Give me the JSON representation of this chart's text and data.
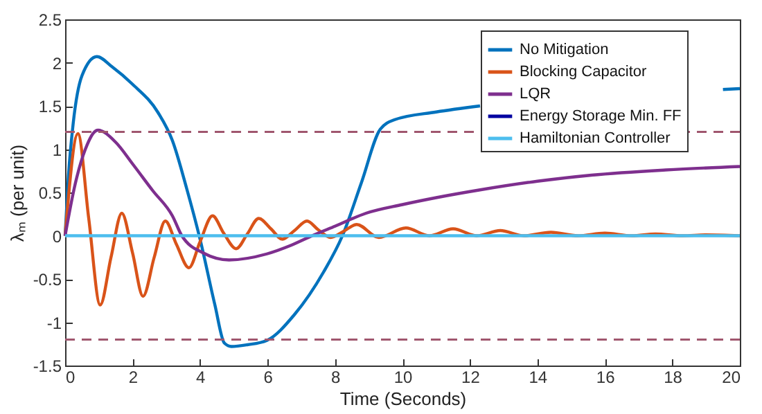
{
  "chart_data": {
    "type": "line",
    "xlabel": "Time (Seconds)",
    "ylabel": "λₘ (per unit)",
    "xlim": [
      0,
      20
    ],
    "xticks": [
      0,
      2,
      4,
      6,
      8,
      10,
      12,
      14,
      16,
      18,
      20
    ],
    "ylim": [
      -1.5,
      2.5
    ],
    "yticks": [
      -1.5,
      -1,
      -0.5,
      0,
      0.5,
      1,
      1.5,
      2,
      2.5
    ],
    "grid": false,
    "legend": "top right",
    "marker": "none",
    "line_style": "solid",
    "series": [
      {
        "name": "No Mitigation",
        "color": "#0072bd",
        "x": [
          0,
          0.1,
          0.24,
          0.5,
          0.94,
          1.4,
          2,
          2.76,
          3.18,
          3.6,
          4.0,
          4.44,
          4.72,
          4.93,
          5.4,
          5.98,
          6.8,
          7.66,
          8.22,
          8.78,
          9.34,
          9.76,
          11,
          12.3,
          15,
          17.5,
          19.5,
          20
        ],
        "values": [
          0,
          0.7,
          1.3,
          1.85,
          2.07,
          1.95,
          1.75,
          1.42,
          1.1,
          0.55,
          -0.04,
          -0.8,
          -1.24,
          -1.28,
          -1.26,
          -1.21,
          -0.91,
          -0.42,
          0,
          0.61,
          1.23,
          1.34,
          1.43,
          1.5,
          null,
          null,
          1.69,
          1.7
        ]
      },
      {
        "name": "Blocking Capacitor",
        "color": "#d95319",
        "x": [
          0,
          0.38,
          0.7,
          1.04,
          1.36,
          1.68,
          2.0,
          2.31,
          2.64,
          2.97,
          3.3,
          3.67,
          4.0,
          4.37,
          4.7,
          5.07,
          5.4,
          5.74,
          6.1,
          6.44,
          6.8,
          7.17,
          7.5,
          7.87,
          8.25,
          8.64,
          9.3,
          10.1,
          10.8,
          11.5,
          12.2,
          12.9,
          13.6,
          14.4,
          15.2,
          16,
          16.8,
          17.5,
          18.3,
          19,
          20
        ],
        "values": [
          0,
          1.18,
          0.2,
          -0.8,
          -0.25,
          0.26,
          -0.2,
          -0.7,
          -0.25,
          0.17,
          -0.1,
          -0.37,
          -0.07,
          0.23,
          0.03,
          -0.15,
          0.02,
          0.2,
          0.08,
          -0.04,
          0.06,
          0.17,
          0.07,
          -0.02,
          0.05,
          0.13,
          -0.02,
          0.09,
          0.0,
          0.08,
          0.0,
          0.06,
          0.0,
          0.04,
          0.0,
          0.03,
          0.0,
          0.02,
          0.0,
          0.01,
          0.0
        ]
      },
      {
        "name": "LQR",
        "color": "#7e2f8e",
        "x": [
          0,
          0.3,
          0.6,
          0.97,
          1.5,
          2,
          2.6,
          3.18,
          3.46,
          4.1,
          4.86,
          5.98,
          6.7,
          7.38,
          8.0,
          8.92,
          10,
          11,
          12.3,
          14,
          15.6,
          17.8,
          20
        ],
        "values": [
          0,
          0.6,
          1.0,
          1.22,
          1.08,
          0.83,
          0.52,
          0.23,
          0.0,
          -0.2,
          -0.28,
          -0.21,
          -0.11,
          0.01,
          0.11,
          0.26,
          0.36,
          0.44,
          0.53,
          0.63,
          0.7,
          0.76,
          0.8
        ]
      },
      {
        "name": "Energy Storage Min. FF",
        "color": "#0000a0"
      },
      {
        "name": "Hamiltonian Controller",
        "color": "#4dbeee",
        "x": [
          0,
          20
        ],
        "values": [
          0,
          0
        ]
      }
    ],
    "ref_lines": [
      {
        "axis": "y",
        "value": 1.2,
        "color": "#a0566e",
        "line_style": "dashed"
      },
      {
        "axis": "y",
        "value": -1.2,
        "color": "#a0566e",
        "line_style": "dashed"
      }
    ]
  }
}
